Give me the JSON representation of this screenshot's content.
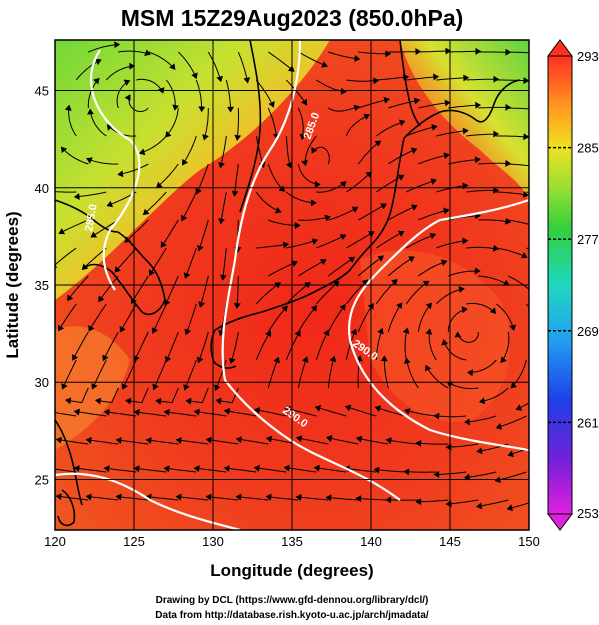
{
  "title": "MSM 15Z29Aug2023 (850.0hPa)",
  "xlabel": "Longitude (degrees)",
  "ylabel": "Latitude  (degrees)",
  "x_ticks": [
    120,
    125,
    130,
    135,
    140,
    145,
    150
  ],
  "y_ticks": [
    25,
    30,
    35,
    40,
    45
  ],
  "x_range": [
    120,
    150
  ],
  "y_range": [
    22.4,
    47.6
  ],
  "colorbar": {
    "min": 253,
    "max": 293,
    "ticks": [
      293,
      285,
      277,
      269,
      261,
      253
    ]
  },
  "contour_labels": [
    "285.0",
    "285.0",
    "290.0",
    "290.0"
  ],
  "credits": {
    "line1": "Drawing by DCL (https://www.gfd-dennou.org/library/dcl/)",
    "line2": "Data from http://database.rish.kyoto-u.ac.jp/arch/jmadata/"
  },
  "colors": {
    "warm": "#e8341c",
    "hot": "#ff4030",
    "mid": "#ffa020",
    "cool": "#a8e030",
    "contour": "#ffffff",
    "coast": "#000000"
  }
}
